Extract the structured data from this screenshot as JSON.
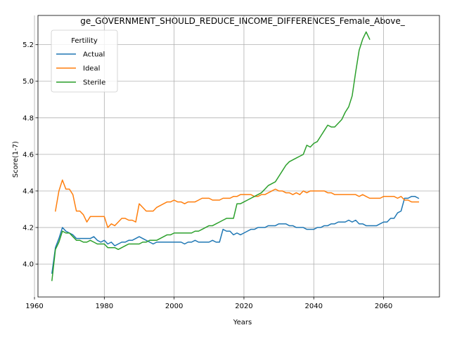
{
  "chart_data": {
    "type": "line",
    "title": "ge_GOVERNMENT_SHOULD_REDUCE_INCOME_DIFFERENCES_Female_Above_",
    "xlabel": "Years",
    "ylabel": "Score(1-7)",
    "xlim": [
      1961,
      2076
    ],
    "ylim": [
      3.82,
      5.36
    ],
    "xticks": [
      1960,
      1980,
      2000,
      2020,
      2040,
      2060
    ],
    "xtick_labels": [
      "1960",
      "1980",
      "2000",
      "2020",
      "2040",
      "2060"
    ],
    "yticks": [
      4.0,
      4.2,
      4.4,
      4.6,
      4.8,
      5.0,
      5.2
    ],
    "ytick_labels": [
      "4.0",
      "4.2",
      "4.4",
      "4.6",
      "4.8",
      "5.0",
      "5.2"
    ],
    "grid": true,
    "legend": {
      "title": "Fertility",
      "placement": "upper-left"
    },
    "series": [
      {
        "name": "Actual",
        "color": "#1f77b4",
        "x": [
          1965,
          1966,
          1967,
          1968,
          1969,
          1970,
          1971,
          1972,
          1973,
          1974,
          1975,
          1976,
          1977,
          1978,
          1979,
          1980,
          1981,
          1982,
          1983,
          1984,
          1985,
          1986,
          1987,
          1988,
          1989,
          1990,
          1991,
          1992,
          1993,
          1994,
          1995,
          1996,
          1997,
          1998,
          1999,
          2000,
          2001,
          2002,
          2003,
          2004,
          2005,
          2006,
          2007,
          2008,
          2009,
          2010,
          2011,
          2012,
          2013,
          2014,
          2015,
          2016,
          2017,
          2018,
          2019,
          2020,
          2021,
          2022,
          2023,
          2024,
          2025,
          2026,
          2027,
          2028,
          2029,
          2030,
          2031,
          2032,
          2033,
          2034,
          2035,
          2036,
          2037,
          2038,
          2039,
          2040,
          2041,
          2042,
          2043,
          2044,
          2045,
          2046,
          2047,
          2048,
          2049,
          2050,
          2051,
          2052,
          2053,
          2054,
          2055,
          2056,
          2057,
          2058,
          2059,
          2060,
          2061,
          2062,
          2063,
          2064,
          2065,
          2066,
          2067,
          2068,
          2069,
          2070
        ],
        "values": [
          3.95,
          4.09,
          4.14,
          4.2,
          4.18,
          4.17,
          4.16,
          4.14,
          4.14,
          4.14,
          4.14,
          4.14,
          4.15,
          4.13,
          4.12,
          4.13,
          4.11,
          4.12,
          4.1,
          4.11,
          4.12,
          4.12,
          4.13,
          4.13,
          4.14,
          4.15,
          4.14,
          4.13,
          4.12,
          4.11,
          4.12,
          4.12,
          4.12,
          4.12,
          4.12,
          4.12,
          4.12,
          4.12,
          4.11,
          4.12,
          4.12,
          4.13,
          4.12,
          4.12,
          4.12,
          4.12,
          4.13,
          4.12,
          4.12,
          4.19,
          4.18,
          4.18,
          4.16,
          4.17,
          4.16,
          4.17,
          4.18,
          4.19,
          4.19,
          4.2,
          4.2,
          4.2,
          4.21,
          4.21,
          4.21,
          4.22,
          4.22,
          4.22,
          4.21,
          4.21,
          4.2,
          4.2,
          4.2,
          4.19,
          4.19,
          4.19,
          4.2,
          4.2,
          4.21,
          4.21,
          4.22,
          4.22,
          4.23,
          4.23,
          4.23,
          4.24,
          4.23,
          4.24,
          4.22,
          4.22,
          4.21,
          4.21,
          4.21,
          4.21,
          4.22,
          4.23,
          4.23,
          4.25,
          4.25,
          4.28,
          4.29,
          4.36,
          4.36,
          4.37,
          4.37,
          4.36
        ]
      },
      {
        "name": "Ideal",
        "color": "#ff7f0e",
        "x": [
          1966,
          1967,
          1968,
          1969,
          1970,
          1971,
          1972,
          1973,
          1974,
          1975,
          1976,
          1977,
          1978,
          1979,
          1980,
          1981,
          1982,
          1983,
          1984,
          1985,
          1986,
          1987,
          1988,
          1989,
          1990,
          1991,
          1992,
          1993,
          1994,
          1995,
          1996,
          1997,
          1998,
          1999,
          2000,
          2001,
          2002,
          2003,
          2004,
          2005,
          2006,
          2007,
          2008,
          2009,
          2010,
          2011,
          2012,
          2013,
          2014,
          2015,
          2016,
          2017,
          2018,
          2019,
          2020,
          2021,
          2022,
          2023,
          2024,
          2025,
          2026,
          2027,
          2028,
          2029,
          2030,
          2031,
          2032,
          2033,
          2034,
          2035,
          2036,
          2037,
          2038,
          2039,
          2040,
          2041,
          2042,
          2043,
          2044,
          2045,
          2046,
          2047,
          2048,
          2049,
          2050,
          2051,
          2052,
          2053,
          2054,
          2055,
          2056,
          2057,
          2058,
          2059,
          2060,
          2061,
          2062,
          2063,
          2064,
          2065,
          2066,
          2067,
          2068,
          2069,
          2070
        ],
        "values": [
          4.29,
          4.4,
          4.46,
          4.41,
          4.41,
          4.38,
          4.29,
          4.29,
          4.27,
          4.23,
          4.26,
          4.26,
          4.26,
          4.26,
          4.26,
          4.2,
          4.22,
          4.21,
          4.23,
          4.25,
          4.25,
          4.24,
          4.24,
          4.23,
          4.33,
          4.31,
          4.29,
          4.29,
          4.29,
          4.31,
          4.32,
          4.33,
          4.34,
          4.34,
          4.35,
          4.34,
          4.34,
          4.33,
          4.34,
          4.34,
          4.34,
          4.35,
          4.36,
          4.36,
          4.36,
          4.35,
          4.35,
          4.35,
          4.36,
          4.36,
          4.36,
          4.37,
          4.37,
          4.38,
          4.38,
          4.38,
          4.38,
          4.37,
          4.37,
          4.38,
          4.38,
          4.39,
          4.4,
          4.41,
          4.4,
          4.4,
          4.39,
          4.39,
          4.38,
          4.39,
          4.38,
          4.4,
          4.39,
          4.4,
          4.4,
          4.4,
          4.4,
          4.4,
          4.39,
          4.39,
          4.38,
          4.38,
          4.38,
          4.38,
          4.38,
          4.38,
          4.38,
          4.37,
          4.38,
          4.37,
          4.36,
          4.36,
          4.36,
          4.36,
          4.37,
          4.37,
          4.37,
          4.37,
          4.36,
          4.37,
          4.35,
          4.35,
          4.34,
          4.34,
          4.34
        ]
      },
      {
        "name": "Sterile",
        "color": "#2ca02c",
        "x": [
          1965,
          1966,
          1967,
          1968,
          1969,
          1970,
          1971,
          1972,
          1973,
          1974,
          1975,
          1976,
          1977,
          1978,
          1979,
          1980,
          1981,
          1982,
          1983,
          1984,
          1985,
          1986,
          1987,
          1988,
          1989,
          1990,
          1991,
          1992,
          1993,
          1994,
          1995,
          1996,
          1997,
          1998,
          1999,
          2000,
          2001,
          2002,
          2003,
          2004,
          2005,
          2006,
          2007,
          2008,
          2009,
          2010,
          2011,
          2012,
          2013,
          2014,
          2015,
          2016,
          2017,
          2018,
          2019,
          2020,
          2021,
          2022,
          2023,
          2024,
          2025,
          2026,
          2027,
          2028,
          2029,
          2030,
          2031,
          2032,
          2033,
          2034,
          2035,
          2036,
          2037,
          2038,
          2039,
          2040,
          2041,
          2042,
          2043,
          2044,
          2045,
          2046,
          2047,
          2048,
          2049,
          2050,
          2051,
          2052,
          2053,
          2054,
          2055,
          2056
        ],
        "values": [
          3.91,
          4.08,
          4.12,
          4.18,
          4.17,
          4.17,
          4.15,
          4.13,
          4.13,
          4.12,
          4.12,
          4.13,
          4.12,
          4.11,
          4.11,
          4.11,
          4.09,
          4.09,
          4.09,
          4.08,
          4.09,
          4.1,
          4.11,
          4.11,
          4.11,
          4.11,
          4.12,
          4.12,
          4.13,
          4.13,
          4.13,
          4.14,
          4.15,
          4.16,
          4.16,
          4.17,
          4.17,
          4.17,
          4.17,
          4.17,
          4.17,
          4.18,
          4.18,
          4.19,
          4.2,
          4.21,
          4.21,
          4.22,
          4.23,
          4.24,
          4.25,
          4.25,
          4.25,
          4.33,
          4.33,
          4.34,
          4.35,
          4.36,
          4.37,
          4.38,
          4.39,
          4.41,
          4.43,
          4.44,
          4.45,
          4.48,
          4.51,
          4.54,
          4.56,
          4.57,
          4.58,
          4.59,
          4.6,
          4.65,
          4.64,
          4.66,
          4.67,
          4.7,
          4.73,
          4.76,
          4.75,
          4.75,
          4.77,
          4.79,
          4.83,
          4.86,
          4.92,
          5.05,
          5.17,
          5.23,
          5.27,
          5.23
        ]
      }
    ]
  }
}
